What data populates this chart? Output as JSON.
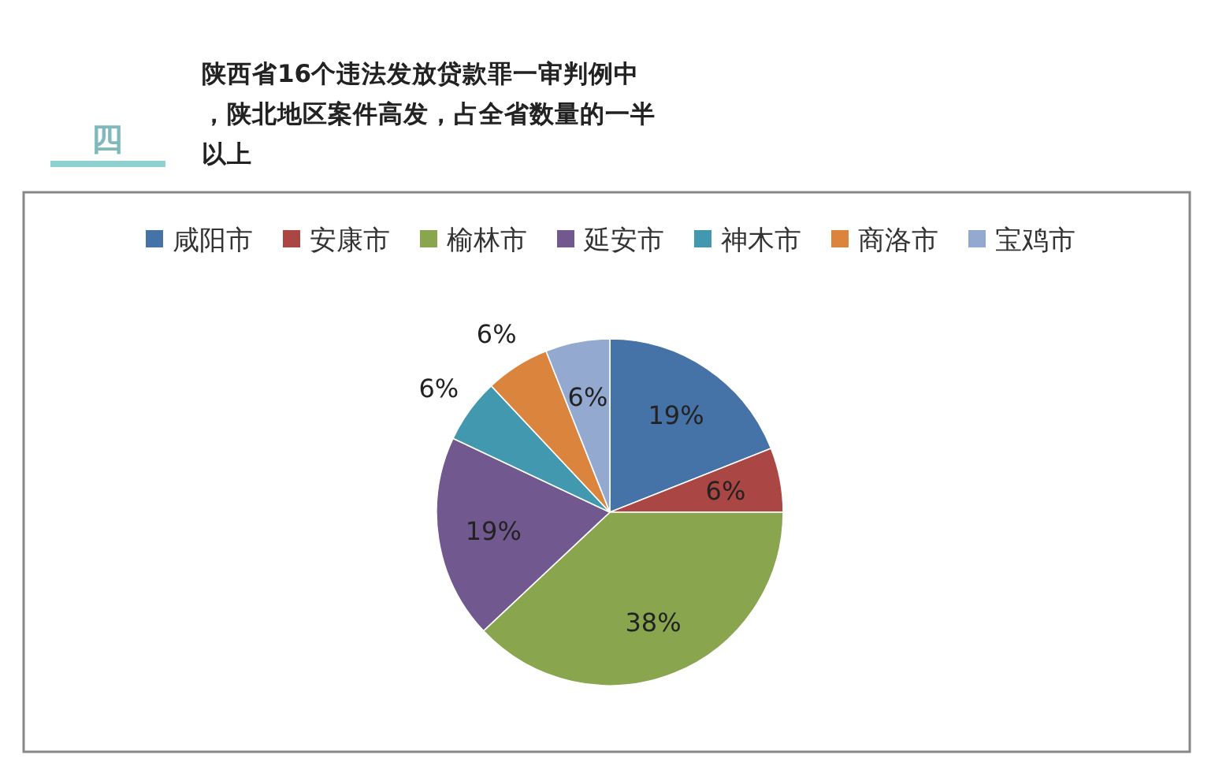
{
  "chart_data": {
    "type": "pie",
    "title": "陕西省16个违法发放贷款罪一审判例中，陕北地区案件高发，占全省数量的一半以上",
    "annotations": [
      "四"
    ],
    "categories": [
      "咸阳市",
      "安康市",
      "榆林市",
      "延安市",
      "神木市",
      "商洛市",
      "宝鸡市"
    ],
    "values": [
      19,
      6,
      38,
      19,
      6,
      6,
      6
    ],
    "colors": [
      "#4572a7",
      "#aa4643",
      "#89a54e",
      "#71588f",
      "#4198af",
      "#db843d",
      "#93a9cf"
    ],
    "value_labels": [
      "19%",
      "6%",
      "38%",
      "19%",
      "6%",
      "6%",
      "6%"
    ],
    "legend": "top"
  }
}
